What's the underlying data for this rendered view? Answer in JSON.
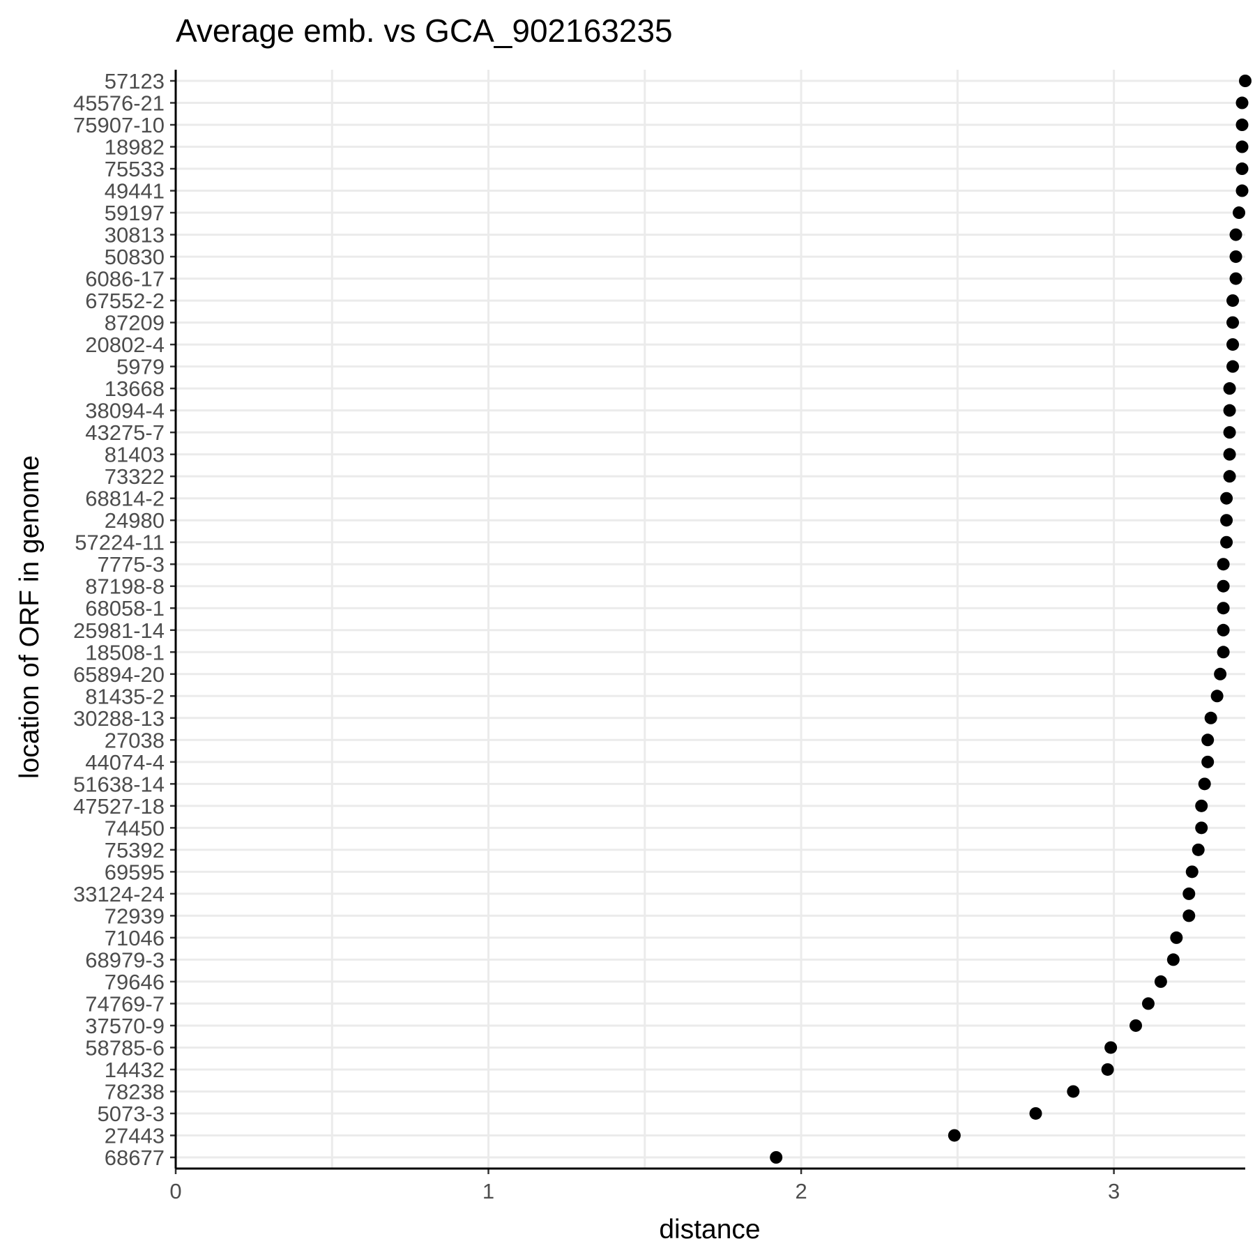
{
  "chart_data": {
    "type": "scatter",
    "title": "Average emb. vs GCA_902163235",
    "xlabel": "distance",
    "ylabel": "location of ORF in genome",
    "xlim": [
      0,
      3.42
    ],
    "xticks": [
      0,
      1,
      2,
      3
    ],
    "xtick_labels": [
      "0",
      "1",
      "2",
      "3"
    ],
    "grid": true,
    "legend": "none",
    "point_color": "#000000",
    "categories": [
      "57123",
      "45576-21",
      "75907-10",
      "18982",
      "75533",
      "49441",
      "59197",
      "30813",
      "50830",
      "6086-17",
      "67552-2",
      "87209",
      "20802-4",
      "5979",
      "13668",
      "38094-4",
      "43275-7",
      "81403",
      "73322",
      "68814-2",
      "24980",
      "57224-11",
      "7775-3",
      "87198-8",
      "68058-1",
      "25981-14",
      "18508-1",
      "65894-20",
      "81435-2",
      "30288-13",
      "27038",
      "44074-4",
      "51638-14",
      "47527-18",
      "74450",
      "75392",
      "69595",
      "33124-24",
      "72939",
      "71046",
      "68979-3",
      "79646",
      "74769-7",
      "37570-9",
      "58785-6",
      "14432",
      "78238",
      "5073-3",
      "27443",
      "68677"
    ],
    "values": [
      3.42,
      3.41,
      3.41,
      3.41,
      3.41,
      3.41,
      3.4,
      3.39,
      3.39,
      3.39,
      3.38,
      3.38,
      3.38,
      3.38,
      3.37,
      3.37,
      3.37,
      3.37,
      3.37,
      3.36,
      3.36,
      3.36,
      3.35,
      3.35,
      3.35,
      3.35,
      3.35,
      3.34,
      3.33,
      3.31,
      3.3,
      3.3,
      3.29,
      3.28,
      3.28,
      3.27,
      3.25,
      3.24,
      3.24,
      3.2,
      3.19,
      3.15,
      3.11,
      3.07,
      2.99,
      2.98,
      2.87,
      2.75,
      2.49,
      1.92
    ]
  }
}
